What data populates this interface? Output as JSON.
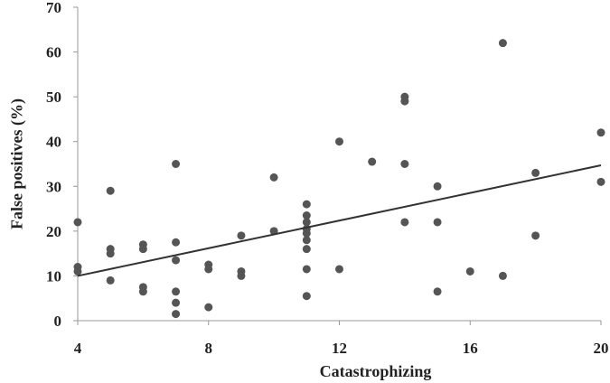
{
  "chart_data": {
    "type": "scatter",
    "xlabel": "Catastrophizing",
    "ylabel": "False positives (%)",
    "xlim": [
      4,
      20
    ],
    "ylim": [
      0,
      70
    ],
    "x_ticks": [
      4,
      8,
      12,
      16,
      20
    ],
    "y_ticks": [
      0,
      10,
      20,
      30,
      40,
      50,
      60,
      70
    ],
    "grid": false,
    "legend": "none",
    "point_color": "#555555",
    "trendline": {
      "type": "linear",
      "x": [
        4,
        20
      ],
      "y": [
        10,
        34.7
      ]
    },
    "points": [
      {
        "x": 4,
        "y": 22
      },
      {
        "x": 4,
        "y": 12
      },
      {
        "x": 4,
        "y": 11
      },
      {
        "x": 5,
        "y": 29
      },
      {
        "x": 5,
        "y": 16
      },
      {
        "x": 5,
        "y": 15
      },
      {
        "x": 5,
        "y": 9
      },
      {
        "x": 6,
        "y": 17
      },
      {
        "x": 6,
        "y": 16
      },
      {
        "x": 6,
        "y": 7.5
      },
      {
        "x": 6,
        "y": 6.5
      },
      {
        "x": 7,
        "y": 35
      },
      {
        "x": 7,
        "y": 17.5
      },
      {
        "x": 7,
        "y": 13.5
      },
      {
        "x": 7,
        "y": 6.5
      },
      {
        "x": 7,
        "y": 4
      },
      {
        "x": 7,
        "y": 1.5
      },
      {
        "x": 8,
        "y": 12.5
      },
      {
        "x": 8,
        "y": 11.5
      },
      {
        "x": 8,
        "y": 3
      },
      {
        "x": 9,
        "y": 19
      },
      {
        "x": 9,
        "y": 11
      },
      {
        "x": 9,
        "y": 10
      },
      {
        "x": 10,
        "y": 32
      },
      {
        "x": 10,
        "y": 20
      },
      {
        "x": 11,
        "y": 26
      },
      {
        "x": 11,
        "y": 23.5
      },
      {
        "x": 11,
        "y": 22
      },
      {
        "x": 11,
        "y": 20.5
      },
      {
        "x": 11,
        "y": 19.5
      },
      {
        "x": 11,
        "y": 18
      },
      {
        "x": 11,
        "y": 16
      },
      {
        "x": 11,
        "y": 11.5
      },
      {
        "x": 11,
        "y": 5.5
      },
      {
        "x": 12,
        "y": 40
      },
      {
        "x": 12,
        "y": 11.5
      },
      {
        "x": 13,
        "y": 35.5
      },
      {
        "x": 14,
        "y": 50
      },
      {
        "x": 14,
        "y": 49
      },
      {
        "x": 14,
        "y": 35
      },
      {
        "x": 14,
        "y": 22
      },
      {
        "x": 15,
        "y": 30
      },
      {
        "x": 15,
        "y": 22
      },
      {
        "x": 15,
        "y": 6.5
      },
      {
        "x": 16,
        "y": 11
      },
      {
        "x": 17,
        "y": 62
      },
      {
        "x": 17,
        "y": 10
      },
      {
        "x": 18,
        "y": 33
      },
      {
        "x": 18,
        "y": 19
      },
      {
        "x": 20,
        "y": 42
      },
      {
        "x": 20,
        "y": 31
      }
    ]
  }
}
